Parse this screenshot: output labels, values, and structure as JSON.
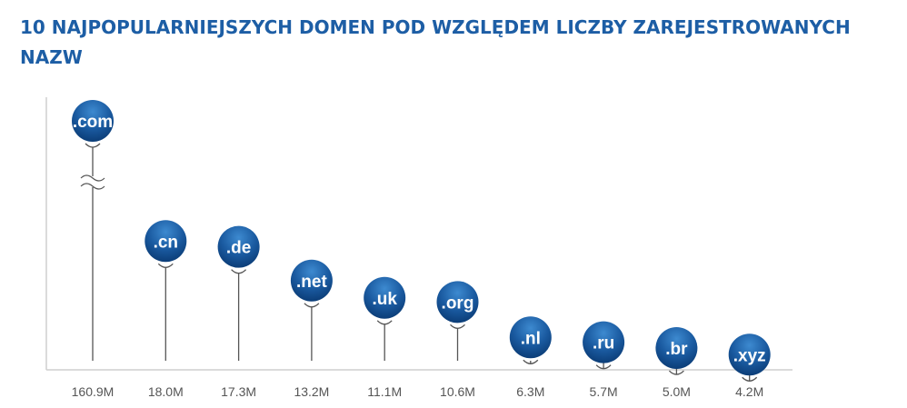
{
  "title": "10 NAJPOPULARNIEJSZYCH DOMEN POD WZGLĘDEM LICZBY ZAREJESTROWANYCH NAZW",
  "colors": {
    "title": "#1d5ea5",
    "bubble_light": "#2f7cc4",
    "bubble_dark": "#0b3d78",
    "stem": "#555555",
    "axis": "#cfcfcf"
  },
  "chart_data": {
    "type": "scatter",
    "title": "10 NAJPOPULARNIEJSZYCH DOMEN POD WZGLĘDEM LICZBY ZAREJESTROWANYCH NAZW",
    "categories": [
      ".com",
      ".cn",
      ".de",
      ".net",
      ".uk",
      ".org",
      ".nl",
      ".ru",
      ".br",
      ".xyz"
    ],
    "values": [
      160.9,
      18.0,
      17.3,
      13.2,
      11.1,
      10.6,
      6.3,
      5.7,
      5.0,
      4.2
    ],
    "value_labels": [
      "160.9M",
      "18.0M",
      "17.3M",
      "13.2M",
      "11.1M",
      "10.6M",
      "6.3M",
      "5.7M",
      "5.0M",
      "4.2M"
    ],
    "unit": "M",
    "axis_break": true,
    "grid": false,
    "legend": "none"
  }
}
